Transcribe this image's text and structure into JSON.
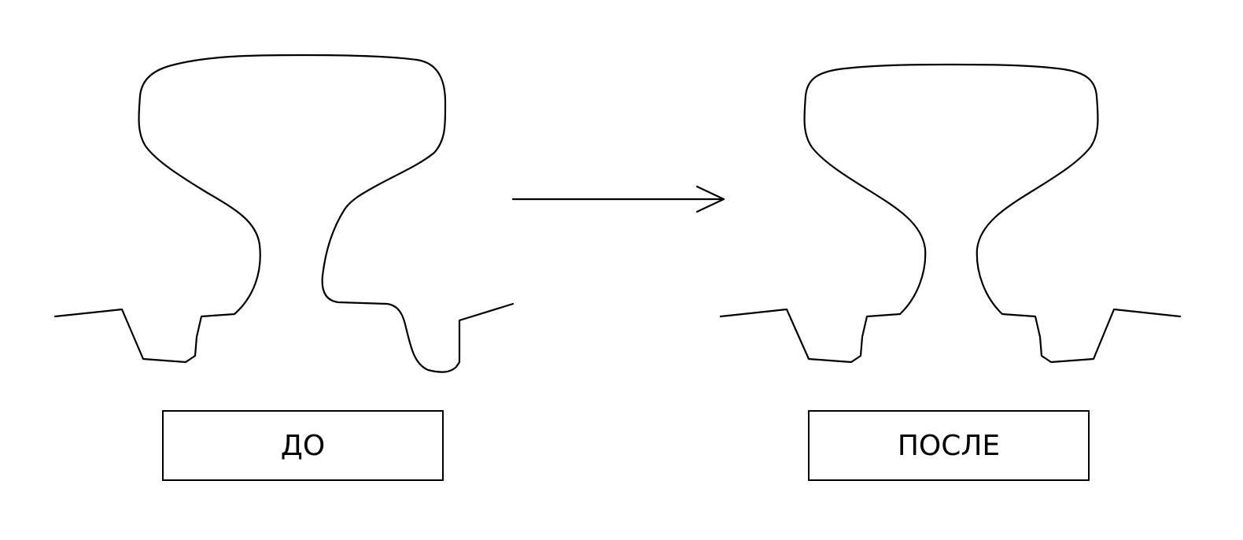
{
  "labels": {
    "before": "ДО",
    "after": "ПОСЛЕ"
  },
  "colors": {
    "stroke": "#000000",
    "background": "#ffffff"
  }
}
